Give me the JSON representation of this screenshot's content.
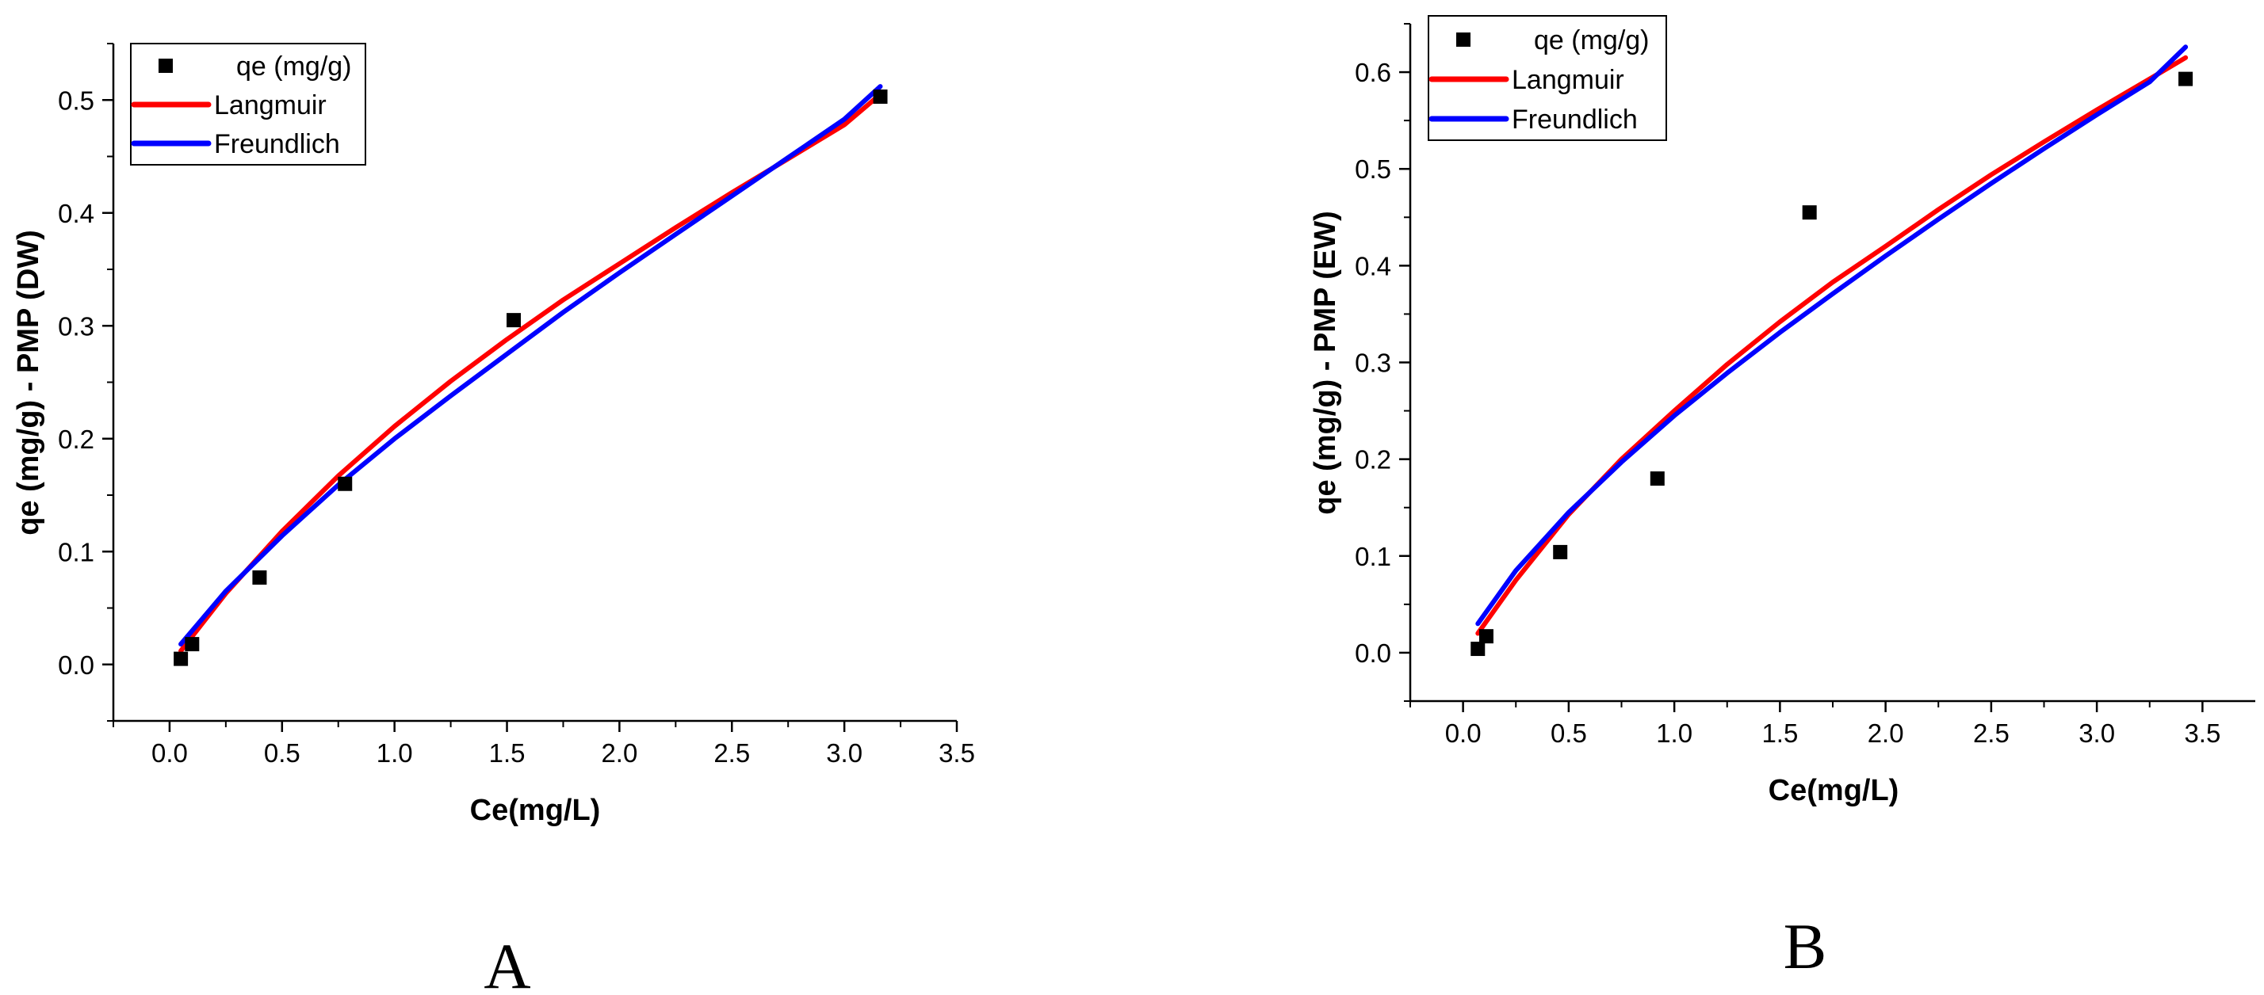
{
  "chart_data": [
    {
      "panel": "A",
      "type": "scatter",
      "title": "",
      "xlabel": "Ce(mg/L)",
      "ylabel": "qe (mg/g) - PMP (DW)",
      "xlim": [
        -0.25,
        3.5
      ],
      "ylim": [
        -0.05,
        0.55
      ],
      "xticks": [
        0.0,
        0.5,
        1.0,
        1.5,
        2.0,
        2.5,
        3.0,
        3.5
      ],
      "xtick_labels": [
        "0.0",
        "0.5",
        "1.0",
        "1.5",
        "2.0",
        "2.5",
        "3.0",
        "3.5"
      ],
      "yticks": [
        0.0,
        0.1,
        0.2,
        0.3,
        0.4,
        0.5
      ],
      "ytick_labels": [
        "0.0",
        "0.1",
        "0.2",
        "0.3",
        "0.4",
        "0.5"
      ],
      "grid": false,
      "legend_position": "top-left",
      "legend": [
        "qe (mg/g)",
        "Langmuir",
        "Freundlich"
      ],
      "series": [
        {
          "name": "qe (mg/g)",
          "kind": "points",
          "color": "#000000",
          "x": [
            0.05,
            0.1,
            0.4,
            0.78,
            1.53,
            3.16
          ],
          "y": [
            0.005,
            0.018,
            0.077,
            0.16,
            0.305,
            0.503
          ]
        },
        {
          "name": "Langmuir",
          "kind": "line",
          "color": "#ff0000",
          "x": [
            0.05,
            0.25,
            0.5,
            0.75,
            1.0,
            1.25,
            1.5,
            1.75,
            2.0,
            2.25,
            2.5,
            2.75,
            3.0,
            3.16
          ],
          "y": [
            0.012,
            0.063,
            0.118,
            0.167,
            0.211,
            0.251,
            0.288,
            0.323,
            0.355,
            0.387,
            0.418,
            0.448,
            0.478,
            0.505
          ]
        },
        {
          "name": "Freundlich",
          "kind": "line",
          "color": "#0000ff",
          "x": [
            0.05,
            0.25,
            0.5,
            0.75,
            1.0,
            1.25,
            1.5,
            1.75,
            2.0,
            2.25,
            2.5,
            2.75,
            3.0,
            3.16
          ],
          "y": [
            0.018,
            0.065,
            0.114,
            0.159,
            0.2,
            0.238,
            0.275,
            0.312,
            0.347,
            0.381,
            0.415,
            0.449,
            0.483,
            0.512
          ]
        }
      ]
    },
    {
      "panel": "B",
      "type": "scatter",
      "title": "",
      "xlabel": "Ce(mg/L)",
      "ylabel": "qe (mg/g) - PMP (EW)",
      "xlim": [
        -0.25,
        3.75
      ],
      "ylim": [
        -0.05,
        0.65
      ],
      "xticks": [
        0.0,
        0.5,
        1.0,
        1.5,
        2.0,
        2.5,
        3.0,
        3.5
      ],
      "xtick_labels": [
        "0.0",
        "0.5",
        "1.0",
        "1.5",
        "2.0",
        "2.5",
        "3.0",
        "3.5"
      ],
      "yticks": [
        0.0,
        0.1,
        0.2,
        0.3,
        0.4,
        0.5,
        0.6
      ],
      "ytick_labels": [
        "0.0",
        "0.1",
        "0.2",
        "0.3",
        "0.4",
        "0.5",
        "0.6"
      ],
      "grid": false,
      "legend_position": "top-left",
      "legend": [
        "qe (mg/g)",
        "Langmuir",
        "Freundlich"
      ],
      "series": [
        {
          "name": "qe (mg/g)",
          "kind": "points",
          "color": "#000000",
          "x": [
            0.07,
            0.11,
            0.46,
            0.92,
            1.64,
            3.42
          ],
          "y": [
            0.004,
            0.017,
            0.104,
            0.18,
            0.455,
            0.593
          ]
        },
        {
          "name": "Langmuir",
          "kind": "line",
          "color": "#ff0000",
          "x": [
            0.07,
            0.25,
            0.5,
            0.75,
            1.0,
            1.25,
            1.5,
            1.75,
            2.0,
            2.25,
            2.5,
            2.75,
            3.0,
            3.25,
            3.42
          ],
          "y": [
            0.02,
            0.075,
            0.143,
            0.2,
            0.25,
            0.298,
            0.342,
            0.383,
            0.42,
            0.458,
            0.494,
            0.528,
            0.561,
            0.593,
            0.615
          ]
        },
        {
          "name": "Freundlich",
          "kind": "line",
          "color": "#0000ff",
          "x": [
            0.07,
            0.25,
            0.5,
            0.75,
            1.0,
            1.25,
            1.5,
            1.75,
            2.0,
            2.25,
            2.5,
            2.75,
            3.0,
            3.25,
            3.42
          ],
          "y": [
            0.03,
            0.085,
            0.145,
            0.197,
            0.245,
            0.289,
            0.331,
            0.371,
            0.41,
            0.448,
            0.485,
            0.521,
            0.556,
            0.59,
            0.626
          ]
        }
      ]
    }
  ],
  "panel_labels": [
    "A",
    "B"
  ]
}
